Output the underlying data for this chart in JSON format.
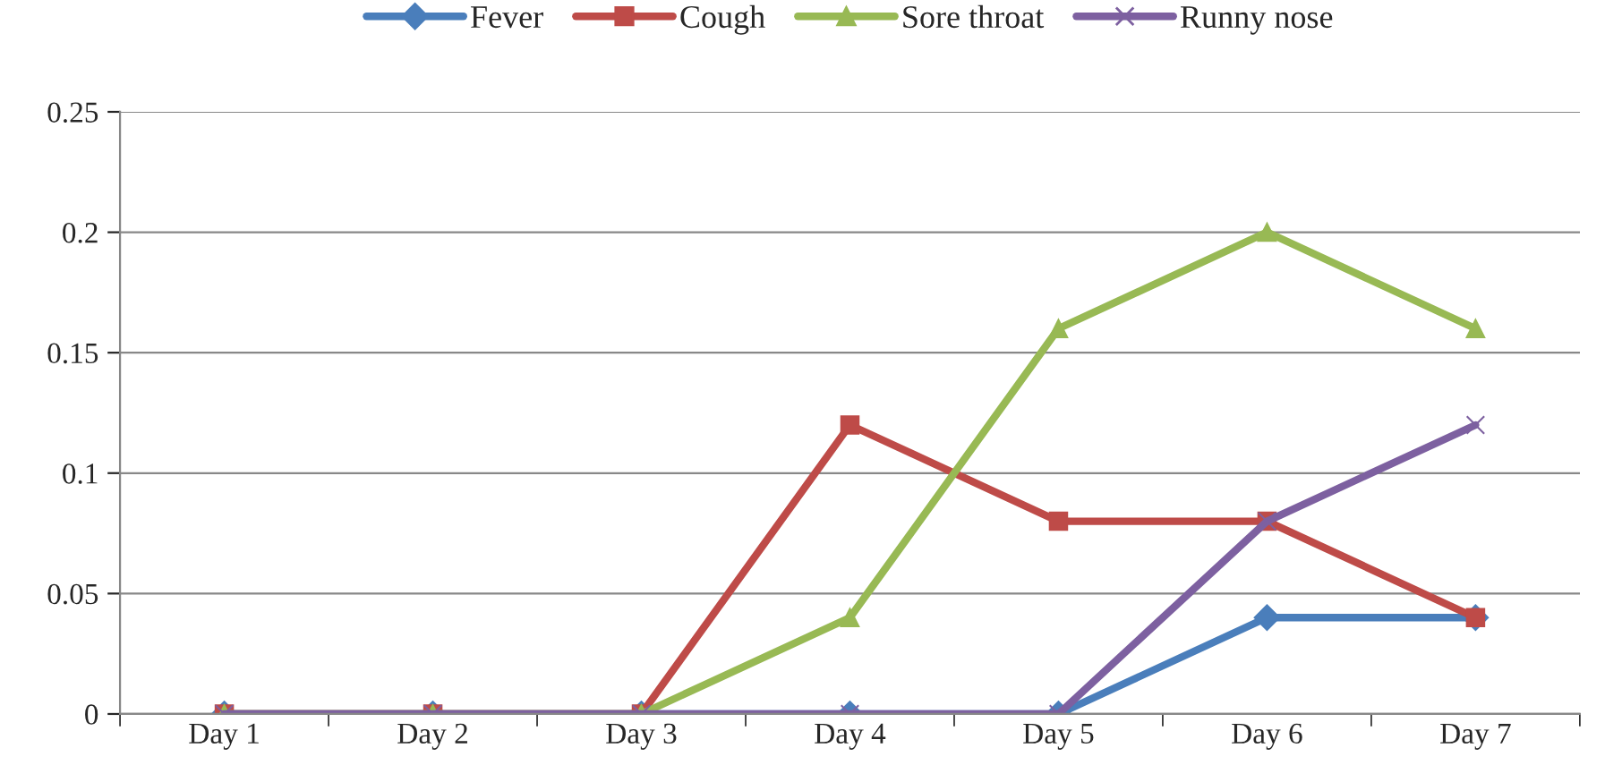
{
  "chart_data": {
    "type": "line",
    "categories": [
      "Day 1",
      "Day 2",
      "Day 3",
      "Day 4",
      "Day 5",
      "Day 6",
      "Day 7"
    ],
    "series": [
      {
        "name": "Fever",
        "color": "#4a7ebb",
        "marker": "diamond",
        "values": [
          0,
          0,
          0,
          0,
          0,
          0.04,
          0.04
        ]
      },
      {
        "name": "Cough",
        "color": "#be4b48",
        "marker": "square",
        "values": [
          0,
          0,
          0,
          0.12,
          0.08,
          0.08,
          0.04
        ]
      },
      {
        "name": "Sore throat",
        "color": "#98b954",
        "marker": "triangle",
        "values": [
          0,
          0,
          0,
          0.04,
          0.16,
          0.2,
          0.16
        ]
      },
      {
        "name": "Runny nose",
        "color": "#7d60a0",
        "marker": "cross",
        "values": [
          0,
          0,
          0,
          0,
          0,
          0.08,
          0.12
        ]
      }
    ],
    "ylim": [
      0,
      0.25
    ],
    "yticks": [
      0,
      0.05,
      0.1,
      0.15,
      0.2,
      0.25
    ],
    "grid": "y",
    "legend": "top",
    "line_style": "solid"
  }
}
